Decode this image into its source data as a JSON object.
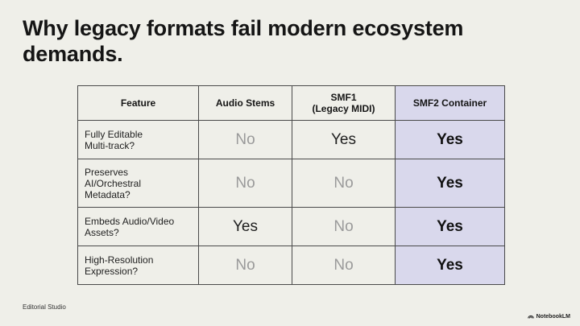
{
  "slide": {
    "title": "Why legacy formats fail modern ecosystem demands.",
    "footer": "Editorial Studio",
    "brand": "NotebookLM"
  },
  "table": {
    "headers": [
      "Feature",
      "Audio Stems",
      "SMF1\n(Legacy MIDI)",
      "SMF2 Container"
    ],
    "rows": [
      {
        "feature": "Fully Editable\nMulti-track?",
        "values": [
          "No",
          "Yes",
          "Yes"
        ]
      },
      {
        "feature": "Preserves\nAI/Orchestral\nMetadata?",
        "values": [
          "No",
          "No",
          "Yes"
        ]
      },
      {
        "feature": "Embeds Audio/Video\nAssets?",
        "values": [
          "Yes",
          "No",
          "Yes"
        ]
      },
      {
        "feature": "High-Resolution\nExpression?",
        "values": [
          "No",
          "No",
          "Yes"
        ]
      }
    ],
    "highlight_color": "#d9d8ec",
    "muted_color": "#9a9a9a"
  }
}
